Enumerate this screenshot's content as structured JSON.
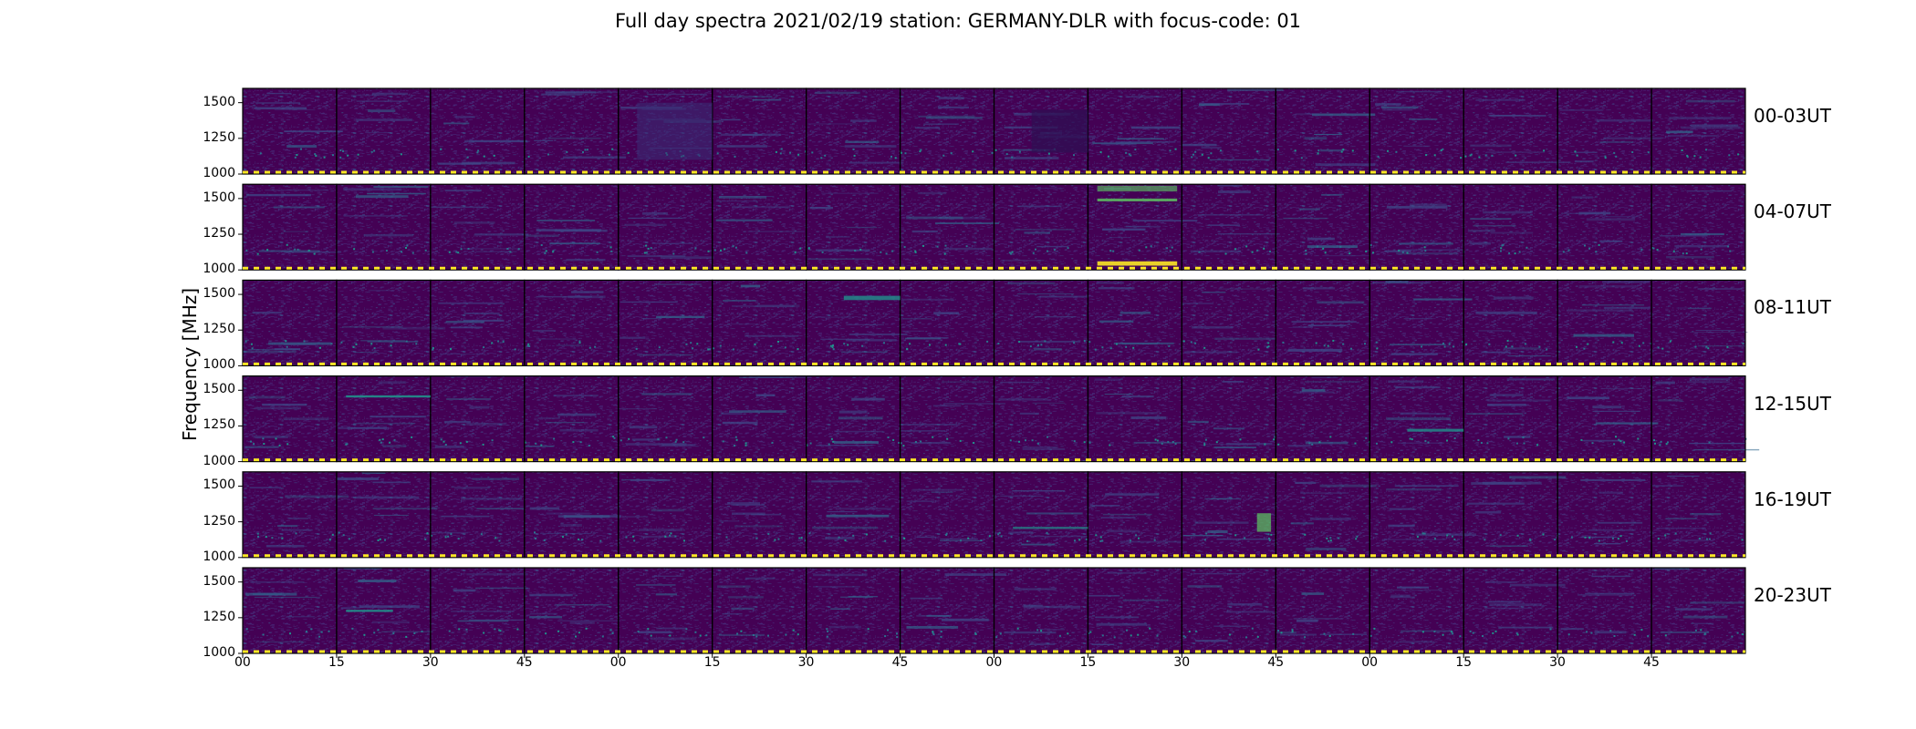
{
  "chart_data": {
    "type": "heatmap",
    "title": "Full day spectra 2021/02/19 station: GERMANY-DLR with focus-code: 01",
    "ylabel": "Frequency [MHz]",
    "xlabel": "",
    "y_ticks": [
      "1000",
      "1250",
      "1500"
    ],
    "ylim": [
      1000,
      1600
    ],
    "x_ticks": [
      "00",
      "15",
      "30",
      "45",
      "00",
      "15",
      "30",
      "45",
      "00",
      "15",
      "30",
      "45",
      "00",
      "15",
      "30",
      "45"
    ],
    "grid": false,
    "colormap": "viridis",
    "panels_per_row": 16,
    "rows": [
      {
        "label": "00-03UT"
      },
      {
        "label": "04-07UT"
      },
      {
        "label": "08-11UT"
      },
      {
        "label": "12-15UT"
      },
      {
        "label": "16-19UT"
      },
      {
        "label": "20-23UT"
      }
    ]
  },
  "colors": {
    "background": "#440154",
    "noise": "#472c7a",
    "signal_mid": "#21918c",
    "signal_high": "#5ec962",
    "signal_max": "#fde725",
    "frame": "#000000"
  }
}
